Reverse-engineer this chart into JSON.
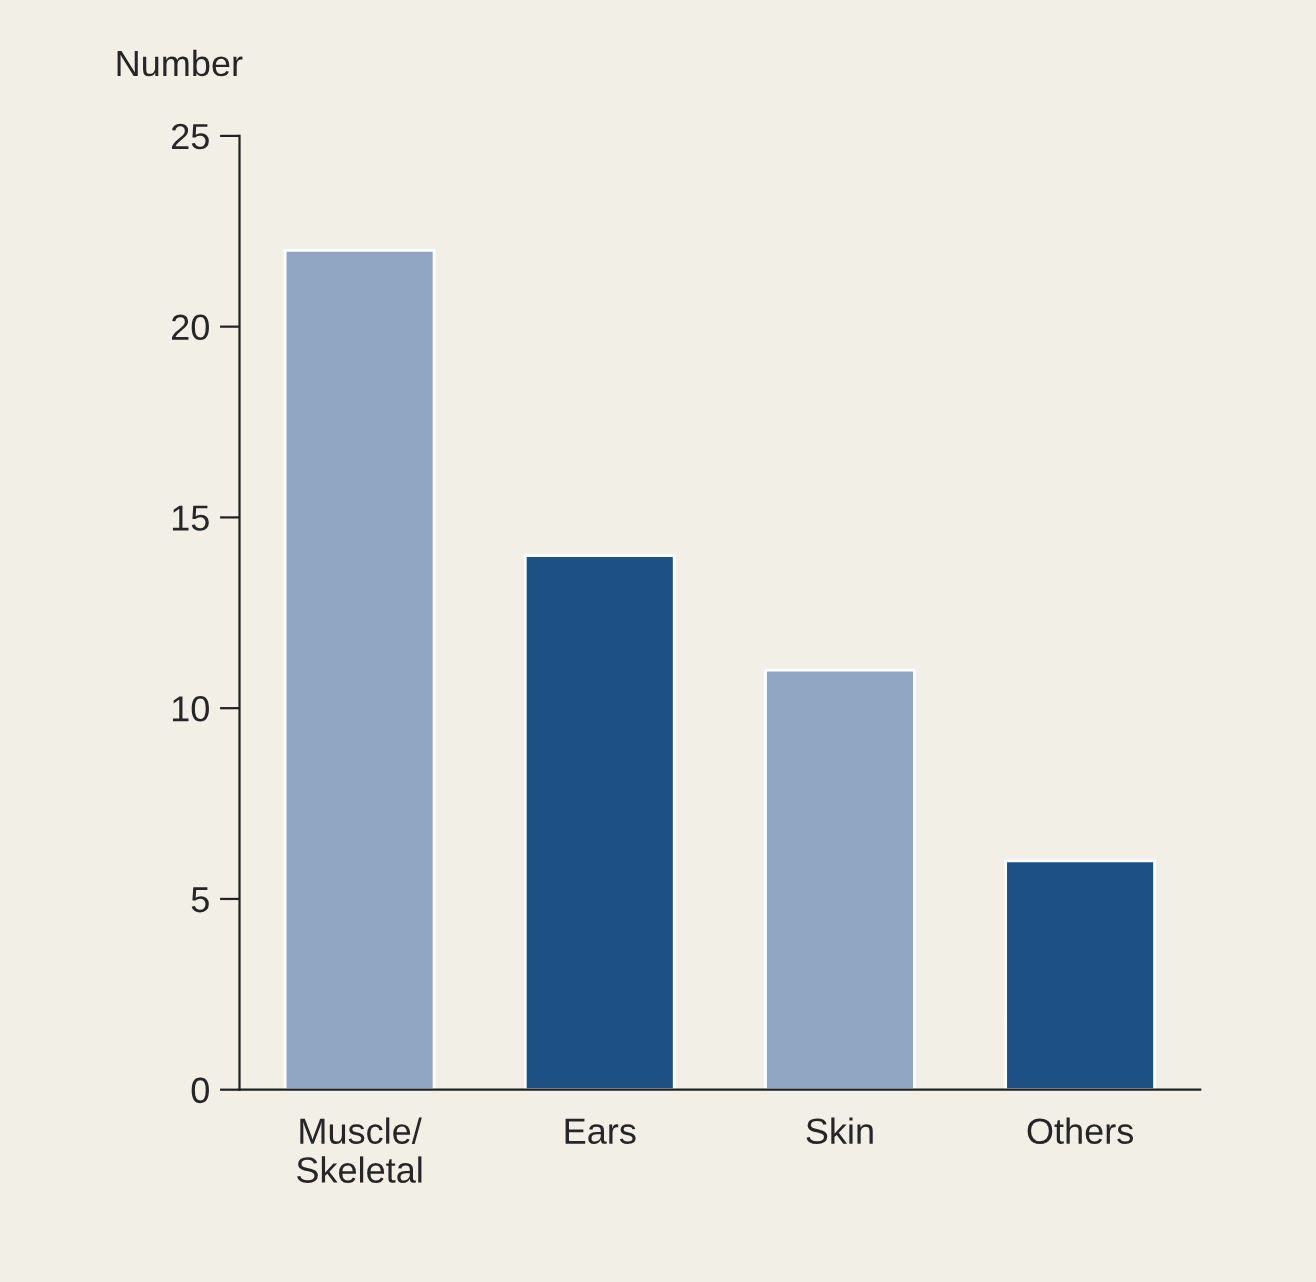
{
  "chart_data": {
    "type": "bar",
    "ylabel": "Number",
    "categories": [
      "Muscle/\nSkeletal",
      "Ears",
      "Skin",
      "Others"
    ],
    "values": [
      22,
      14,
      11,
      6
    ],
    "colors": [
      "#91a6c2",
      "#1d5186",
      "#91a6c2",
      "#1d5186"
    ],
    "ylim": [
      0,
      25
    ],
    "yticks": [
      0,
      5,
      10,
      15,
      20,
      25
    ],
    "grid": false,
    "legend": false
  }
}
